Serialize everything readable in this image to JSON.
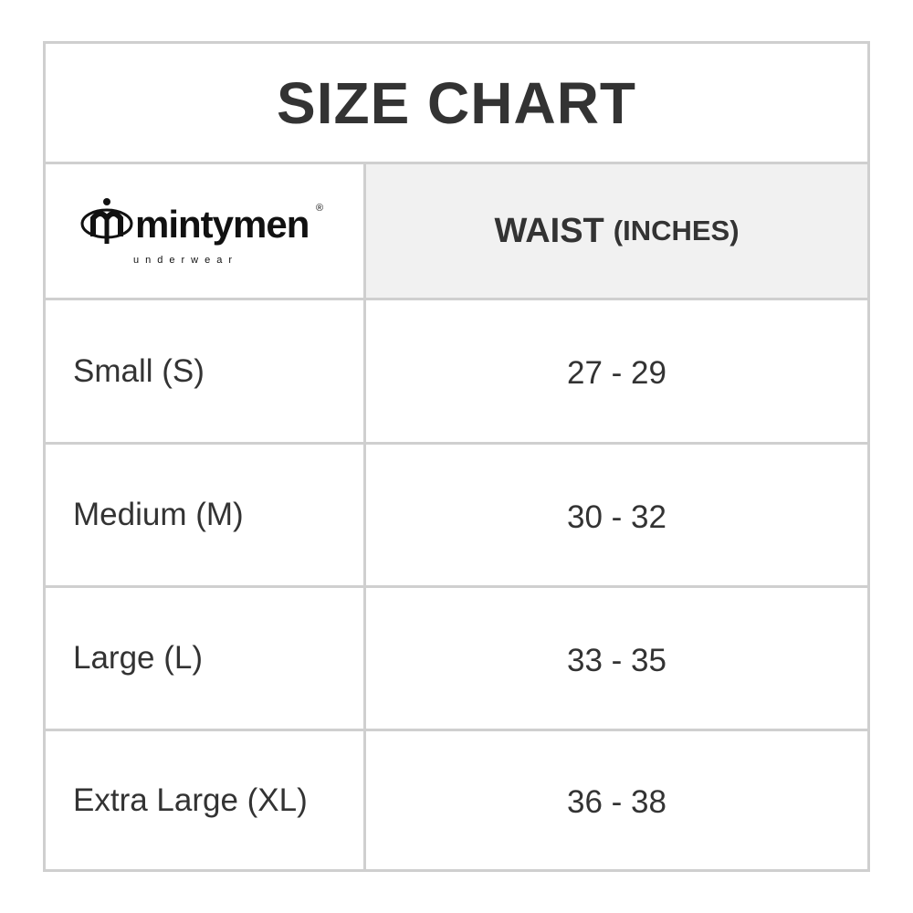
{
  "title": "SIZE CHART",
  "logo": {
    "brand": "mintymen",
    "tagline": "underwear",
    "registered": "®"
  },
  "header": {
    "measure": "WAIST",
    "unit": "(INCHES)"
  },
  "rows": [
    {
      "size": "Small (S)",
      "waist": "27 - 29"
    },
    {
      "size": "Medium (M)",
      "waist": "30 - 32"
    },
    {
      "size": "Large (L)",
      "waist": "33 - 35"
    },
    {
      "size": "Extra Large (XL)",
      "waist": "36 - 38"
    }
  ],
  "colors": {
    "border": "#cfcfcf",
    "header_bg": "#f1f1f1",
    "text": "#333333"
  }
}
